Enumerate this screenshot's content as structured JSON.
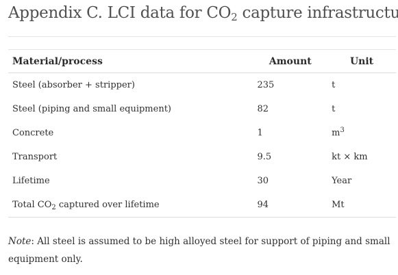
{
  "title": {
    "prefix": "Appendix C. LCI data for CO",
    "sub": "2",
    "suffix": " capture infrastructure"
  },
  "table": {
    "headers": {
      "material": "Material/process",
      "amount": "Amount",
      "unit": "Unit"
    },
    "rows": [
      {
        "material": "Steel (absorber + stripper)",
        "amount": "235",
        "unit": "t"
      },
      {
        "material": "Steel (piping and small equipment)",
        "amount": "82",
        "unit": "t"
      },
      {
        "material": "Concrete",
        "amount": "1",
        "unit_base": "m",
        "unit_sup": "3"
      },
      {
        "material": "Transport",
        "amount": "9.5",
        "unit": "kt × km"
      },
      {
        "material": "Lifetime",
        "amount": "30",
        "unit": "Year"
      },
      {
        "material_prefix": "Total CO",
        "material_sub": "2",
        "material_suffix": " captured over lifetime",
        "amount": "94",
        "unit": "Mt"
      }
    ]
  },
  "note": {
    "label": "Note",
    "text": ": All steel is assumed to be high alloyed steel for support of piping and small equipment only."
  }
}
